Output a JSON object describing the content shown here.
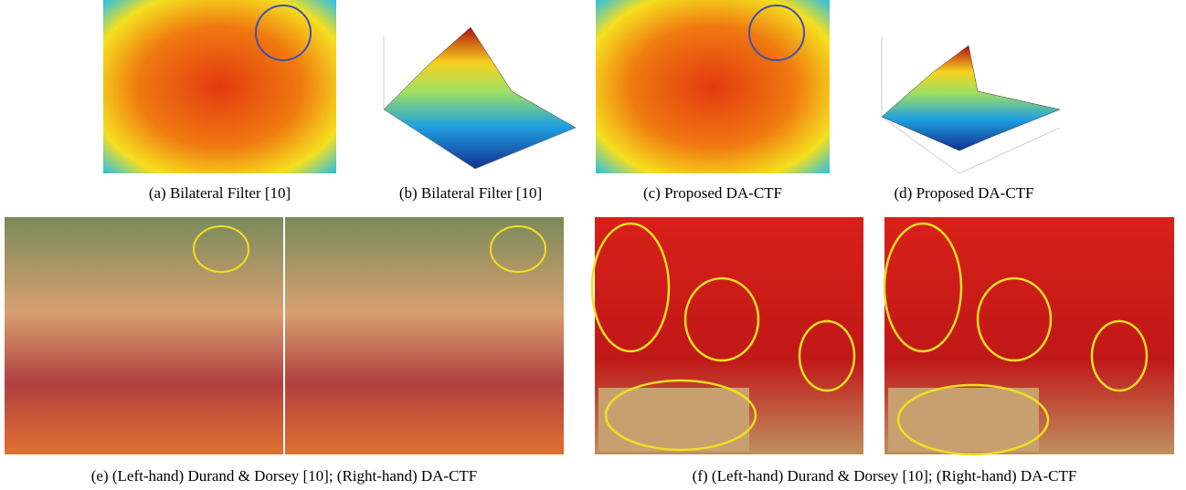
{
  "figure": {
    "captions": [
      "(a)  Bilateral Filter [10]",
      "(b)  Bilateral Filter [10]",
      "(c)  Proposed DA-CTF",
      "(d)  Proposed DA-CTF",
      "(e)  (Left-hand) Durand & Dorsey [10]; (Right-hand) DA-CTF",
      "(f)  (Left-hand) Durand & Dorsey [10]; (Right-hand) DA-CTF"
    ]
  }
}
